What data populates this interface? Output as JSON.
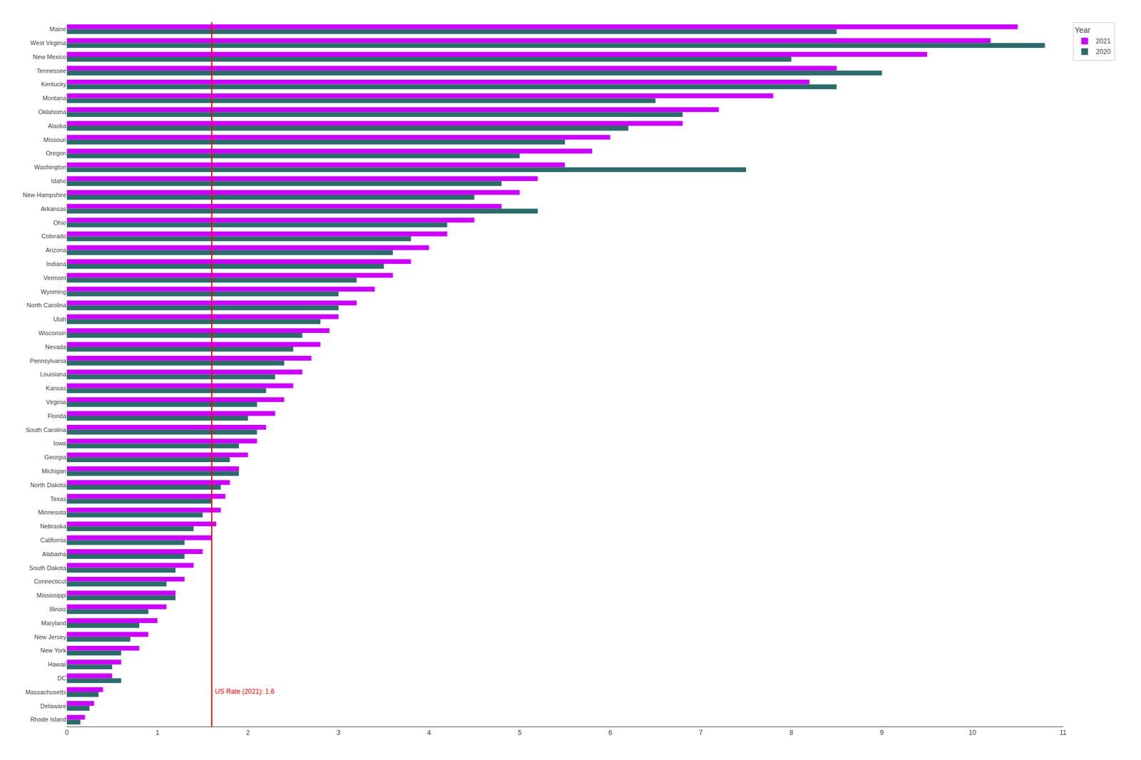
{
  "chart_data": {
    "type": "bar",
    "orientation": "horizontal",
    "categories": [
      "Maine",
      "West Virginia",
      "New Mexico",
      "Tennessee",
      "Kentucky",
      "Montana",
      "Oklahoma",
      "Alaska",
      "Missouri",
      "Oregon",
      "Washington",
      "Idaho",
      "New Hampshire",
      "Arkansas",
      "Ohio",
      "Colorado",
      "Arizona",
      "Indiana",
      "Vermont",
      "Wyoming",
      "North Carolina",
      "Utah",
      "Wisconsin",
      "Nevada",
      "Pennsylvania",
      "Louisiana",
      "Kansas",
      "Virginia",
      "Florida",
      "South Carolina",
      "Iowa",
      "Georgia",
      "Michigan",
      "North Dakota",
      "Texas",
      "Minnesota",
      "Nebraska",
      "California",
      "Alabama",
      "South Dakota",
      "Connecticut",
      "Mississippi",
      "Illinois",
      "Maryland",
      "New Jersey",
      "New York",
      "Hawaii",
      "DC",
      "Massachusetts",
      "Delaware",
      "Rhode Island"
    ],
    "series": [
      {
        "name": "2021",
        "color": "#cc00ff",
        "values": [
          10.5,
          10.2,
          9.5,
          8.5,
          8.2,
          7.8,
          7.2,
          6.8,
          6.0,
          5.8,
          5.5,
          5.2,
          5.0,
          4.8,
          4.5,
          4.2,
          4.0,
          3.8,
          3.6,
          3.4,
          3.2,
          3.0,
          2.9,
          2.8,
          2.7,
          2.6,
          2.5,
          2.4,
          2.3,
          2.2,
          2.1,
          2.0,
          1.9,
          1.8,
          1.75,
          1.7,
          1.65,
          1.6,
          1.5,
          1.4,
          1.3,
          1.2,
          1.1,
          1.0,
          0.9,
          0.8,
          0.6,
          0.5,
          0.4,
          0.3,
          0.2
        ]
      },
      {
        "name": "2020",
        "color": "#2d6b6b",
        "values": [
          8.5,
          10.8,
          8.0,
          9.0,
          8.5,
          6.5,
          6.8,
          6.2,
          5.5,
          5.0,
          7.5,
          4.8,
          4.5,
          5.2,
          4.2,
          3.8,
          3.6,
          3.5,
          3.2,
          3.0,
          3.0,
          2.8,
          2.6,
          2.5,
          2.4,
          2.3,
          2.2,
          2.1,
          2.0,
          2.1,
          1.9,
          1.8,
          1.9,
          1.7,
          1.6,
          1.5,
          1.4,
          1.3,
          1.3,
          1.2,
          1.1,
          1.2,
          0.9,
          0.8,
          0.7,
          0.6,
          0.5,
          0.6,
          0.35,
          0.25,
          0.15
        ]
      }
    ],
    "legend_title": "Year",
    "legend": "upper right",
    "xlim": [
      0,
      11
    ],
    "xticks": [
      0,
      1,
      2,
      3,
      4,
      5,
      6,
      7,
      8,
      9,
      10,
      11
    ],
    "grid": false,
    "annotations": [
      {
        "text": "US Rate (2021): 1.6",
        "x": 1.6,
        "color": "#ff0000"
      }
    ]
  }
}
